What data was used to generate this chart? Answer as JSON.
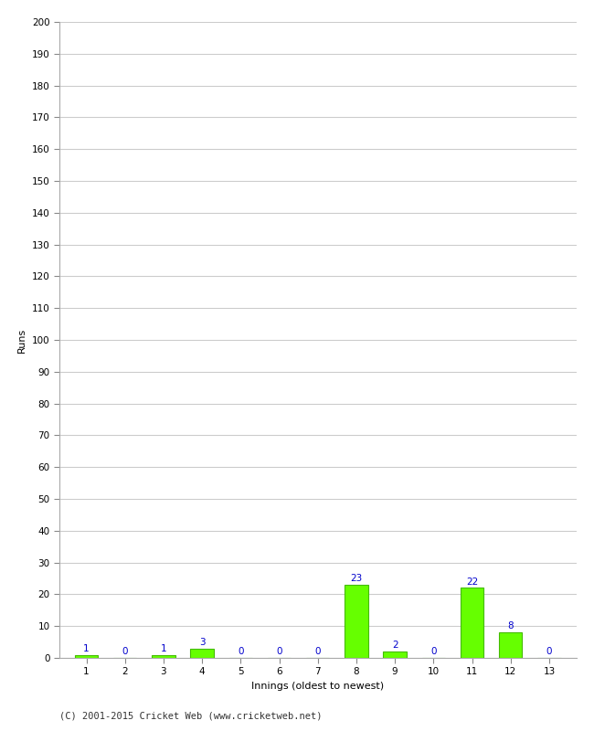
{
  "innings": [
    1,
    2,
    3,
    4,
    5,
    6,
    7,
    8,
    9,
    10,
    11,
    12,
    13
  ],
  "runs": [
    1,
    0,
    1,
    3,
    0,
    0,
    0,
    23,
    2,
    0,
    22,
    8,
    0
  ],
  "bar_color": "#66ff00",
  "bar_edge_color": "#44bb00",
  "label_color": "#0000cc",
  "xlabel": "Innings (oldest to newest)",
  "ylabel": "Runs",
  "ylim": [
    0,
    200
  ],
  "yticks": [
    0,
    10,
    20,
    30,
    40,
    50,
    60,
    70,
    80,
    90,
    100,
    110,
    120,
    130,
    140,
    150,
    160,
    170,
    180,
    190,
    200
  ],
  "footer": "(C) 2001-2015 Cricket Web (www.cricketweb.net)",
  "background_color": "#ffffff",
  "grid_color": "#cccccc",
  "label_fontsize": 7.5,
  "axis_label_fontsize": 8,
  "tick_fontsize": 7.5,
  "footer_fontsize": 7.5
}
